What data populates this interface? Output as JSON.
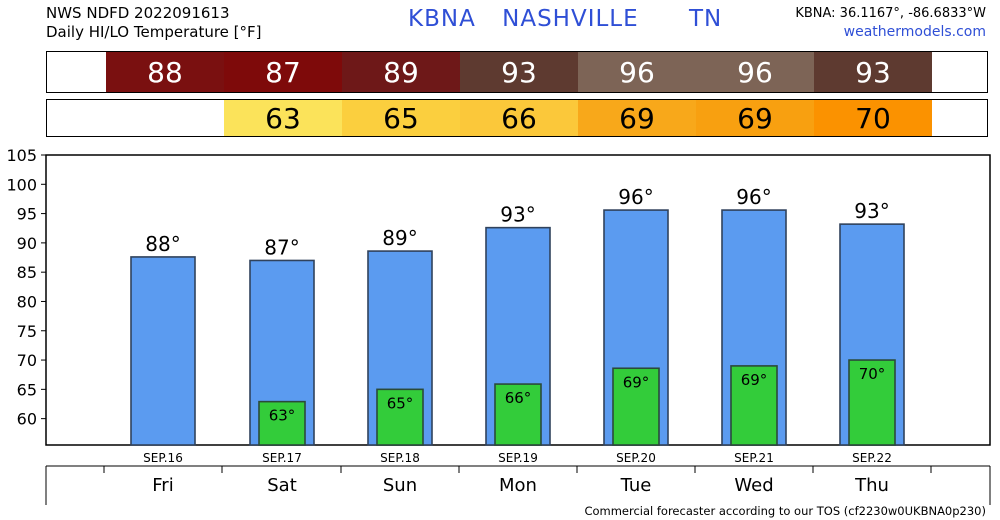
{
  "header": {
    "line1": "NWS NDFD 2022091613",
    "line2": "Daily HI/LO Temperature [°F]",
    "station": "KBNA",
    "city": "NASHVILLE",
    "state": "TN",
    "coords": "KBNA: 36.1167°, -86.6833°W",
    "site": "weathermodels.com"
  },
  "strip_hi": [
    {
      "value": "88",
      "color": "#7a1010"
    },
    {
      "value": "87",
      "color": "#7e0a0a"
    },
    {
      "value": "89",
      "color": "#6e1818"
    },
    {
      "value": "93",
      "color": "#5e3a30"
    },
    {
      "value": "96",
      "color": "#7d6456"
    },
    {
      "value": "96",
      "color": "#7d6456"
    },
    {
      "value": "93",
      "color": "#5e3a30"
    }
  ],
  "strip_lo": [
    {
      "value": "",
      "color": "#ffffff"
    },
    {
      "value": "63",
      "color": "#fbe35a"
    },
    {
      "value": "65",
      "color": "#fbcf3e"
    },
    {
      "value": "66",
      "color": "#fbc83a"
    },
    {
      "value": "69",
      "color": "#f8a81a"
    },
    {
      "value": "69",
      "color": "#f8a010"
    },
    {
      "value": "70",
      "color": "#fb9200"
    }
  ],
  "chart_data": {
    "type": "bar",
    "categories": [
      "Fri",
      "Sat",
      "Sun",
      "Mon",
      "Tue",
      "Wed",
      "Thu"
    ],
    "dates": [
      "SEP.16",
      "SEP.17",
      "SEP.18",
      "SEP.19",
      "SEP.20",
      "SEP.21",
      "SEP.22"
    ],
    "series": [
      {
        "values": [
          87.6,
          87.0,
          88.6,
          92.6,
          95.6,
          95.6,
          93.2
        ],
        "labels": [
          "88°",
          "87°",
          "89°",
          "93°",
          "96°",
          "96°",
          "93°"
        ],
        "color": "#5b9bf0"
      },
      {
        "values": [
          null,
          62.9,
          65.0,
          65.9,
          68.6,
          69.0,
          70.0
        ],
        "labels": [
          "",
          "63°",
          "65°",
          "66°",
          "69°",
          "69°",
          "70°"
        ],
        "color": "#33cc3a"
      }
    ],
    "yticks": [
      60,
      65,
      70,
      75,
      80,
      85,
      90,
      95,
      100,
      105
    ],
    "ylim": [
      55.5,
      105
    ],
    "grid": false
  },
  "footer": "Commercial forecaster according to our TOS (cf2230w0UKBNA0p230)"
}
